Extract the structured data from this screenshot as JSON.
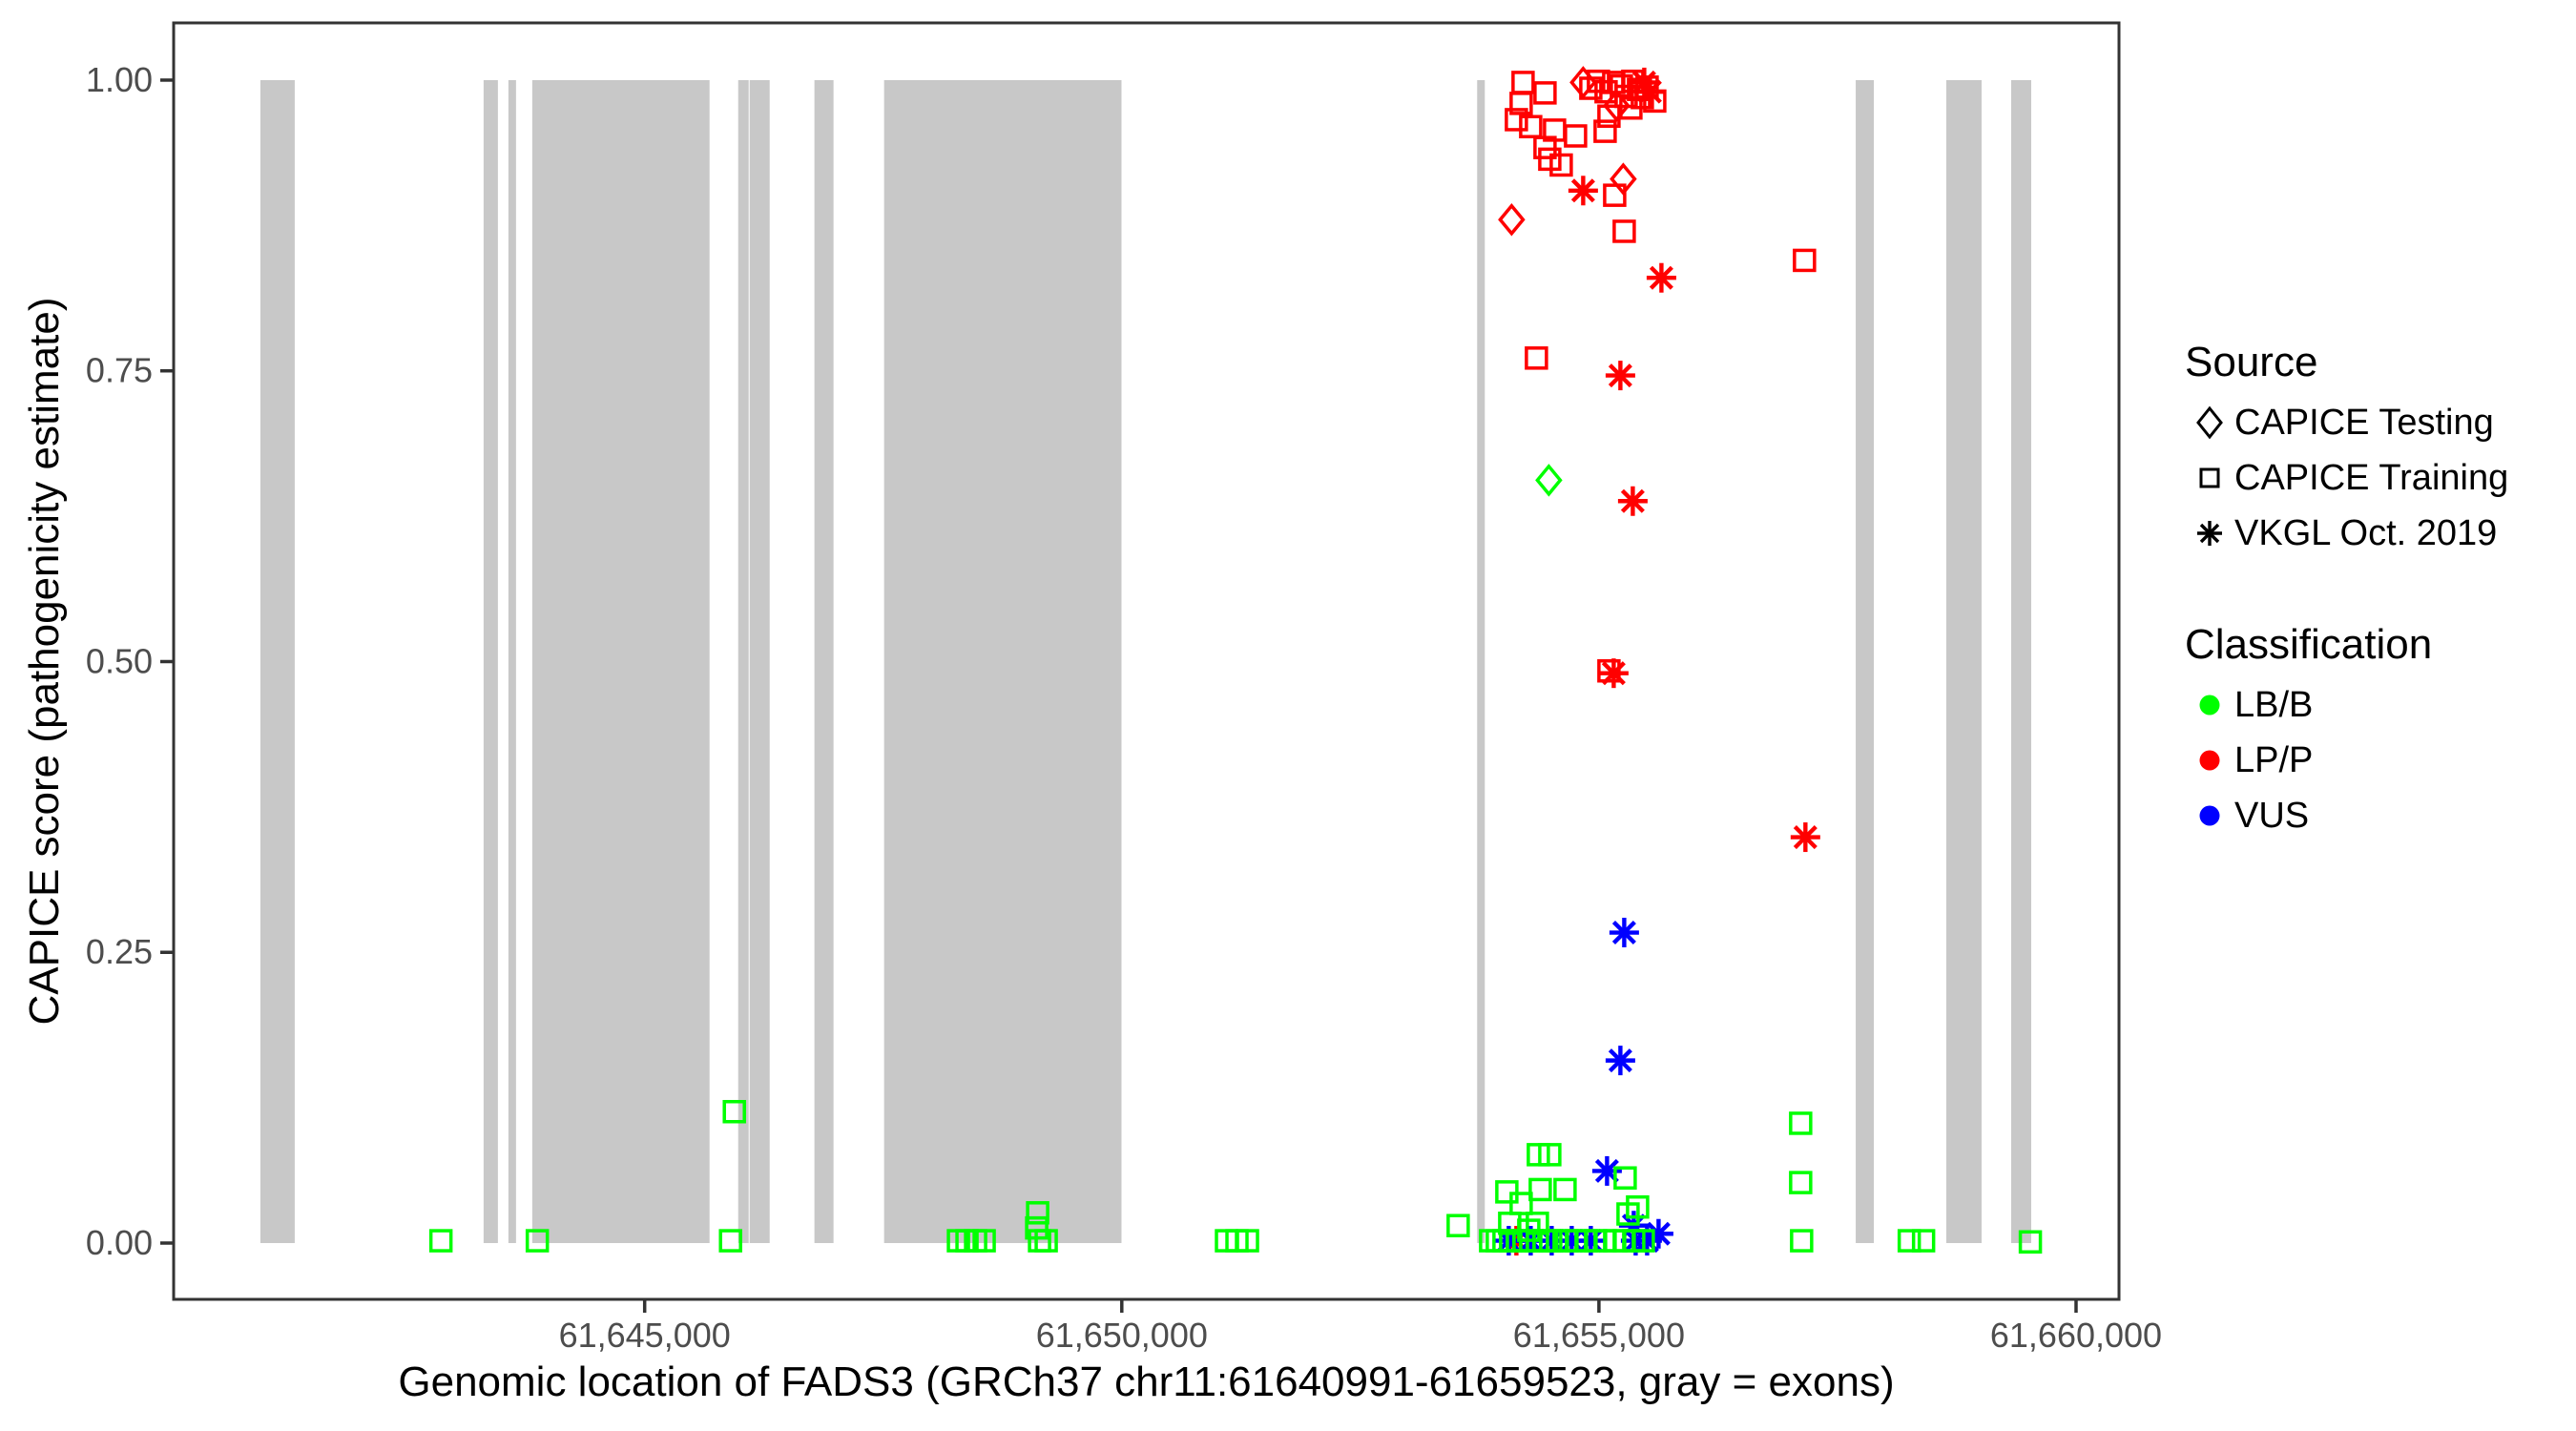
{
  "colors": {
    "lbb": "#00FF00",
    "lpp": "#FF0000",
    "vus": "#0000FF",
    "exon": "#C8C8C8",
    "tick_text": "#4D4D4D",
    "panel_border": "#333333",
    "legend_icon": "#000000"
  },
  "legend": {
    "source": {
      "title": "Source",
      "items": [
        {
          "label": "CAPICE Testing",
          "shape": "diamond"
        },
        {
          "label": "CAPICE Training",
          "shape": "square"
        },
        {
          "label": "VKGL Oct. 2019",
          "shape": "asterisk"
        }
      ]
    },
    "classification": {
      "title": "Classification",
      "items": [
        {
          "label": "LB/B",
          "color": "#00FF00"
        },
        {
          "label": "LP/P",
          "color": "#FF0000"
        },
        {
          "label": "VUS",
          "color": "#0000FF"
        }
      ]
    }
  },
  "chart_data": {
    "type": "scatter",
    "title": "",
    "xlabel": "Genomic location of FADS3 (GRCh37 chr11:61640991-61659523, gray = exons)",
    "ylabel": "CAPICE score (pathogenicity estimate)",
    "gene_range": [
      61640991,
      61659523
    ],
    "x_domain": [
      61640064,
      61660450
    ],
    "y_domain_scores": [
      -0.0484,
      1.0492
    ],
    "grid": false,
    "legend_position": "right",
    "x_ticks": [
      {
        "value": 61645000,
        "label": "61,645,000"
      },
      {
        "value": 61650000,
        "label": "61,650,000"
      },
      {
        "value": 61655000,
        "label": "61,655,000"
      },
      {
        "value": 61660000,
        "label": "61,660,000"
      }
    ],
    "y_ticks": [
      {
        "value": 0.0,
        "label": "0.00"
      },
      {
        "value": 0.25,
        "label": "0.25"
      },
      {
        "value": 0.5,
        "label": "0.50"
      },
      {
        "value": 0.75,
        "label": "0.75"
      },
      {
        "value": 1.0,
        "label": "1.00"
      }
    ],
    "exons_note": "gray rectangles spanning score 0 to 1, genomic [start,end]",
    "exons": [
      [
        61640973,
        61641333
      ],
      [
        61643312,
        61643462
      ],
      [
        61643572,
        61643652
      ],
      [
        61643822,
        61645680
      ],
      [
        61645980,
        61646090
      ],
      [
        61646100,
        61646310
      ],
      [
        61646779,
        61646979
      ],
      [
        61647509,
        61649997
      ],
      [
        61653724,
        61653804
      ],
      [
        61657691,
        61657881
      ],
      [
        61658640,
        61659010
      ],
      [
        61659320,
        61659530
      ]
    ],
    "points_schema": [
      "genomic_position",
      "capice_score",
      "source",
      "classification"
    ],
    "points": [
      [
        61654995,
        0.999,
        "CAPICE Training",
        "LP/P"
      ],
      [
        61655355,
        0.999,
        "CAPICE Training",
        "LP/P"
      ],
      [
        61655155,
        0.998,
        "CAPICE Training",
        "LP/P"
      ],
      [
        61654205,
        0.998,
        "CAPICE Training",
        "LP/P"
      ],
      [
        61655235,
        0.995,
        "CAPICE Training",
        "LP/P"
      ],
      [
        61655505,
        0.994,
        "CAPICE Training",
        "LP/P"
      ],
      [
        61654915,
        0.993,
        "CAPICE Training",
        "LP/P"
      ],
      [
        61655415,
        0.992,
        "CAPICE Training",
        "LP/P"
      ],
      [
        61655075,
        0.99,
        "CAPICE Training",
        "LP/P"
      ],
      [
        61654435,
        0.989,
        "CAPICE Training",
        "LP/P"
      ],
      [
        61655285,
        0.986,
        "CAPICE Training",
        "LP/P"
      ],
      [
        61655455,
        0.985,
        "CAPICE Training",
        "LP/P"
      ],
      [
        61655585,
        0.982,
        "CAPICE Training",
        "LP/P"
      ],
      [
        61654185,
        0.98,
        "CAPICE Training",
        "LP/P"
      ],
      [
        61655335,
        0.976,
        "CAPICE Training",
        "LP/P"
      ],
      [
        61655105,
        0.969,
        "CAPICE Training",
        "LP/P"
      ],
      [
        61654135,
        0.966,
        "CAPICE Training",
        "LP/P"
      ],
      [
        61654285,
        0.96,
        "CAPICE Training",
        "LP/P"
      ],
      [
        61654535,
        0.957,
        "CAPICE Training",
        "LP/P"
      ],
      [
        61655065,
        0.956,
        "CAPICE Training",
        "LP/P"
      ],
      [
        61654755,
        0.952,
        "CAPICE Training",
        "LP/P"
      ],
      [
        61654435,
        0.942,
        "CAPICE Training",
        "LP/P"
      ],
      [
        61654485,
        0.932,
        "CAPICE Training",
        "LP/P"
      ],
      [
        61654605,
        0.927,
        "CAPICE Training",
        "LP/P"
      ],
      [
        61655165,
        0.901,
        "CAPICE Training",
        "LP/P"
      ],
      [
        61655265,
        0.87,
        "CAPICE Training",
        "LP/P"
      ],
      [
        61657154,
        0.845,
        "CAPICE Training",
        "LP/P"
      ],
      [
        61654345,
        0.761,
        "CAPICE Training",
        "LP/P"
      ],
      [
        61655105,
        0.492,
        "CAPICE Training",
        "LP/P"
      ],
      [
        61654835,
        0.998,
        "CAPICE Testing",
        "LP/P"
      ],
      [
        61655185,
        0.978,
        "CAPICE Testing",
        "LP/P"
      ],
      [
        61655255,
        0.915,
        "CAPICE Testing",
        "LP/P"
      ],
      [
        61654085,
        0.88,
        "CAPICE Testing",
        "LP/P"
      ],
      [
        61654475,
        0.656,
        "CAPICE Testing",
        "LB/B"
      ],
      [
        61655475,
        0.998,
        "VKGL Oct. 2019",
        "LP/P"
      ],
      [
        61655535,
        0.99,
        "VKGL Oct. 2019",
        "LP/P"
      ],
      [
        61654835,
        0.905,
        "VKGL Oct. 2019",
        "LP/P"
      ],
      [
        61655655,
        0.83,
        "VKGL Oct. 2019",
        "LP/P"
      ],
      [
        61655225,
        0.746,
        "VKGL Oct. 2019",
        "LP/P"
      ],
      [
        61655355,
        0.638,
        "VKGL Oct. 2019",
        "LP/P"
      ],
      [
        61655155,
        0.49,
        "VKGL Oct. 2019",
        "LP/P"
      ],
      [
        61657164,
        0.349,
        "VKGL Oct. 2019",
        "LP/P"
      ],
      [
        61654135,
        0.002,
        "VKGL Oct. 2019",
        "LP/P"
      ],
      [
        61655265,
        0.267,
        "VKGL Oct. 2019",
        "VUS"
      ],
      [
        61655225,
        0.157,
        "VKGL Oct. 2019",
        "VUS"
      ],
      [
        61655085,
        0.062,
        "VKGL Oct. 2019",
        "VUS"
      ],
      [
        61655365,
        0.015,
        "VKGL Oct. 2019",
        "VUS"
      ],
      [
        61655625,
        0.008,
        "VKGL Oct. 2019",
        "VUS"
      ],
      [
        61654055,
        0.002,
        "VKGL Oct. 2019",
        "VUS"
      ],
      [
        61654285,
        0.002,
        "VKGL Oct. 2019",
        "VUS"
      ],
      [
        61654505,
        0.002,
        "VKGL Oct. 2019",
        "VUS"
      ],
      [
        61654715,
        0.002,
        "VKGL Oct. 2019",
        "VUS"
      ],
      [
        61654915,
        0.002,
        "VKGL Oct. 2019",
        "VUS"
      ],
      [
        61655385,
        0.002,
        "VKGL Oct. 2019",
        "VUS"
      ],
      [
        61655505,
        0.002,
        "VKGL Oct. 2019",
        "VUS"
      ],
      [
        61645940,
        0.113,
        "CAPICE Training",
        "LB/B"
      ],
      [
        61657114,
        0.103,
        "CAPICE Training",
        "LB/B"
      ],
      [
        61654365,
        0.076,
        "CAPICE Training",
        "LB/B"
      ],
      [
        61654485,
        0.076,
        "CAPICE Training",
        "LB/B"
      ],
      [
        61655275,
        0.056,
        "CAPICE Training",
        "LB/B"
      ],
      [
        61657114,
        0.052,
        "CAPICE Training",
        "LB/B"
      ],
      [
        61654385,
        0.046,
        "CAPICE Training",
        "LB/B"
      ],
      [
        61654645,
        0.046,
        "CAPICE Training",
        "LB/B"
      ],
      [
        61654035,
        0.044,
        "CAPICE Training",
        "LB/B"
      ],
      [
        61654185,
        0.034,
        "CAPICE Training",
        "LB/B"
      ],
      [
        61655405,
        0.031,
        "CAPICE Training",
        "LB/B"
      ],
      [
        61649118,
        0.026,
        "CAPICE Training",
        "LB/B"
      ],
      [
        61655305,
        0.025,
        "CAPICE Training",
        "LB/B"
      ],
      [
        61654065,
        0.017,
        "CAPICE Training",
        "LB/B"
      ],
      [
        61654355,
        0.017,
        "CAPICE Training",
        "LB/B"
      ],
      [
        61653525,
        0.015,
        "CAPICE Training",
        "LB/B"
      ],
      [
        61649108,
        0.013,
        "CAPICE Training",
        "LB/B"
      ],
      [
        61654265,
        0.011,
        "CAPICE Training",
        "LB/B"
      ],
      [
        61642865,
        0.002,
        "CAPICE Training",
        "LB/B"
      ],
      [
        61643875,
        0.002,
        "CAPICE Training",
        "LB/B"
      ],
      [
        61645900,
        0.002,
        "CAPICE Training",
        "LB/B"
      ],
      [
        61648288,
        0.002,
        "CAPICE Training",
        "LB/B"
      ],
      [
        61648378,
        0.002,
        "CAPICE Training",
        "LB/B"
      ],
      [
        61648468,
        0.002,
        "CAPICE Training",
        "LB/B"
      ],
      [
        61648558,
        0.002,
        "CAPICE Training",
        "LB/B"
      ],
      [
        61649138,
        0.002,
        "CAPICE Training",
        "LB/B"
      ],
      [
        61649208,
        0.002,
        "CAPICE Training",
        "LB/B"
      ],
      [
        61651097,
        0.002,
        "CAPICE Training",
        "LB/B"
      ],
      [
        61651207,
        0.002,
        "CAPICE Training",
        "LB/B"
      ],
      [
        61651317,
        0.002,
        "CAPICE Training",
        "LB/B"
      ],
      [
        61653865,
        0.002,
        "CAPICE Training",
        "LB/B"
      ],
      [
        61653935,
        0.002,
        "CAPICE Training",
        "LB/B"
      ],
      [
        61654005,
        0.002,
        "CAPICE Training",
        "LB/B"
      ],
      [
        61654075,
        0.002,
        "CAPICE Training",
        "LB/B"
      ],
      [
        61654145,
        0.002,
        "CAPICE Training",
        "LB/B"
      ],
      [
        61654215,
        0.002,
        "CAPICE Training",
        "LB/B"
      ],
      [
        61654285,
        0.002,
        "CAPICE Training",
        "LB/B"
      ],
      [
        61654355,
        0.002,
        "CAPICE Training",
        "LB/B"
      ],
      [
        61654425,
        0.002,
        "CAPICE Training",
        "LB/B"
      ],
      [
        61654495,
        0.002,
        "CAPICE Training",
        "LB/B"
      ],
      [
        61654565,
        0.002,
        "CAPICE Training",
        "LB/B"
      ],
      [
        61654665,
        0.002,
        "CAPICE Training",
        "LB/B"
      ],
      [
        61654765,
        0.002,
        "CAPICE Training",
        "LB/B"
      ],
      [
        61654865,
        0.002,
        "CAPICE Training",
        "LB/B"
      ],
      [
        61654965,
        0.002,
        "CAPICE Training",
        "LB/B"
      ],
      [
        61655065,
        0.002,
        "CAPICE Training",
        "LB/B"
      ],
      [
        61655165,
        0.002,
        "CAPICE Training",
        "LB/B"
      ],
      [
        61655265,
        0.002,
        "CAPICE Training",
        "LB/B"
      ],
      [
        61655365,
        0.002,
        "CAPICE Training",
        "LB/B"
      ],
      [
        61655465,
        0.002,
        "CAPICE Training",
        "LB/B"
      ],
      [
        61657124,
        0.002,
        "CAPICE Training",
        "LB/B"
      ],
      [
        61658252,
        0.002,
        "CAPICE Training",
        "LB/B"
      ],
      [
        61658402,
        0.002,
        "CAPICE Training",
        "LB/B"
      ],
      [
        61659521,
        0.001,
        "CAPICE Training",
        "LB/B"
      ]
    ]
  }
}
